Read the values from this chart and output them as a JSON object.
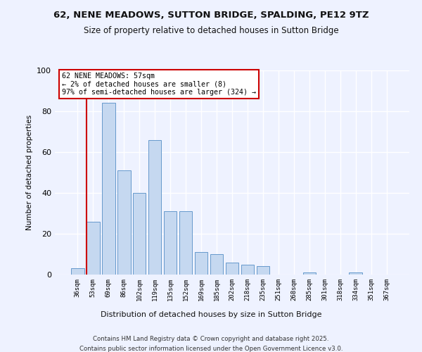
{
  "title_line1": "62, NENE MEADOWS, SUTTON BRIDGE, SPALDING, PE12 9TZ",
  "title_line2": "Size of property relative to detached houses in Sutton Bridge",
  "xlabel": "Distribution of detached houses by size in Sutton Bridge",
  "ylabel": "Number of detached properties",
  "bar_labels": [
    "36sqm",
    "53sqm",
    "69sqm",
    "86sqm",
    "102sqm",
    "119sqm",
    "135sqm",
    "152sqm",
    "169sqm",
    "185sqm",
    "202sqm",
    "218sqm",
    "235sqm",
    "251sqm",
    "268sqm",
    "285sqm",
    "301sqm",
    "318sqm",
    "334sqm",
    "351sqm",
    "367sqm"
  ],
  "bar_values": [
    3,
    26,
    84,
    51,
    40,
    66,
    31,
    31,
    11,
    10,
    6,
    5,
    4,
    0,
    0,
    1,
    0,
    0,
    1,
    0,
    0
  ],
  "bar_color": "#c5d8f0",
  "bar_edge_color": "#6699cc",
  "ylim": [
    0,
    100
  ],
  "yticks": [
    0,
    20,
    40,
    60,
    80,
    100
  ],
  "property_line_color": "#cc0000",
  "annotation_title": "62 NENE MEADOWS: 57sqm",
  "annotation_line1": "← 2% of detached houses are smaller (8)",
  "annotation_line2": "97% of semi-detached houses are larger (324) →",
  "annotation_box_color": "#ffffff",
  "annotation_box_edge": "#cc0000",
  "footer_line1": "Contains HM Land Registry data © Crown copyright and database right 2025.",
  "footer_line2": "Contains public sector information licensed under the Open Government Licence v3.0.",
  "bg_color": "#eef2ff"
}
